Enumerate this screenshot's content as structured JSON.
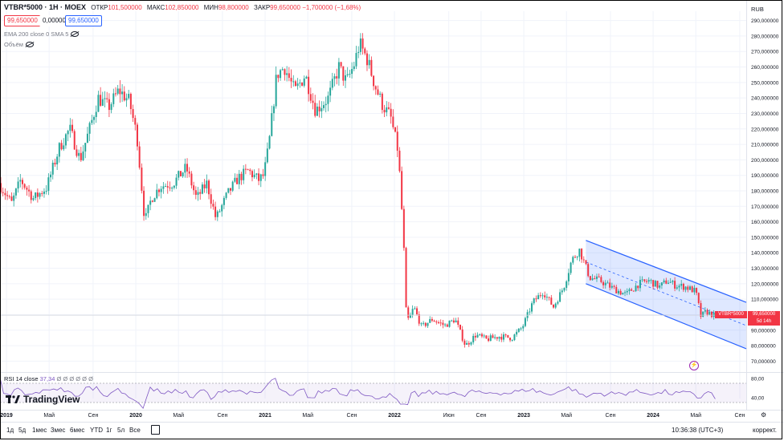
{
  "header": {
    "symbol": "VTBR*5000 · 1H · MOEX",
    "open_label": "ОТКР",
    "open": "101,500000",
    "high_label": "МАКС",
    "high": "102,850000",
    "low_label": "МИН",
    "low": "98,800000",
    "close_label": "ЗАКР",
    "close": "99,650000",
    "change": "−1,700000 (−1,68%)"
  },
  "pills": {
    "sell": "99,650000",
    "spread": "0,000000",
    "buy": "99,650000"
  },
  "indicators": {
    "ema": "EMA 200 close 0 SMA 5",
    "volume": "Объём"
  },
  "currency": "RUB",
  "price_tag": {
    "symbol": "VTBR*5000",
    "price": "99,650000",
    "countdown": "5d 14h"
  },
  "rsi": {
    "label": "RSI 14 close",
    "value": "37,34",
    "zeros": "Ø Ø Ø Ø Ø Ø"
  },
  "brand": "TradingView",
  "timeframes": [
    "1д",
    "5д",
    "1мес",
    "3мес",
    "6мес",
    "YTD",
    "1г",
    "5л",
    "Все"
  ],
  "clock": "10:36:38 (UTC+3)",
  "correction": "коррект.",
  "colors": {
    "up": "#26a69a",
    "down": "#f23645",
    "channel": "#2962ff",
    "rsi": "#7e57c2"
  },
  "chart_data": {
    "type": "candlestick",
    "ylim": [
      64,
      296
    ],
    "y_ticks": [
      290,
      280,
      270,
      260,
      250,
      240,
      230,
      220,
      210,
      200,
      190,
      180,
      170,
      160,
      150,
      140,
      130,
      120,
      110,
      100,
      90,
      80,
      70
    ],
    "y_tick_labels": [
      "290,000000",
      "280,000000",
      "270,000000",
      "260,000000",
      "250,000000",
      "240,000000",
      "230,000000",
      "220,000000",
      "210,000000",
      "200,000000",
      "190,000000",
      "180,000000",
      "170,000000",
      "160,000000",
      "150,000000",
      "140,000000",
      "130,000000",
      "120,000000",
      "110,000000",
      "100,000000",
      "90,000000",
      "80,000000",
      "70,000000"
    ],
    "x_ticks": [
      {
        "label": "2019",
        "t": 2019.0,
        "bold": true
      },
      {
        "label": "Май",
        "t": 2019.33
      },
      {
        "label": "Сен",
        "t": 2019.67
      },
      {
        "label": "2020",
        "t": 2020.0,
        "bold": true
      },
      {
        "label": "Май",
        "t": 2020.33
      },
      {
        "label": "Сен",
        "t": 2020.67
      },
      {
        "label": "2021",
        "t": 2021.0,
        "bold": true
      },
      {
        "label": "Май",
        "t": 2021.33
      },
      {
        "label": "Сен",
        "t": 2021.67
      },
      {
        "label": "2022",
        "t": 2022.0,
        "bold": true
      },
      {
        "label": "Июн",
        "t": 2022.42
      },
      {
        "label": "Сен",
        "t": 2022.67
      },
      {
        "label": "2023",
        "t": 2023.0,
        "bold": true
      },
      {
        "label": "Май",
        "t": 2023.33
      },
      {
        "label": "Сен",
        "t": 2023.67
      },
      {
        "label": "2024",
        "t": 2024.0,
        "bold": true
      },
      {
        "label": "Май",
        "t": 2024.33
      },
      {
        "label": "Сен",
        "t": 2024.67
      }
    ],
    "xlim": [
      2018.95,
      2024.72
    ],
    "last_price": 99.65,
    "anchors": [
      [
        2018.95,
        185
      ],
      [
        2019.05,
        172
      ],
      [
        2019.12,
        187
      ],
      [
        2019.22,
        175
      ],
      [
        2019.32,
        182
      ],
      [
        2019.42,
        208
      ],
      [
        2019.5,
        220
      ],
      [
        2019.58,
        200
      ],
      [
        2019.66,
        222
      ],
      [
        2019.72,
        240
      ],
      [
        2019.8,
        234
      ],
      [
        2019.88,
        245
      ],
      [
        2019.96,
        238
      ],
      [
        2020.02,
        215
      ],
      [
        2020.08,
        160
      ],
      [
        2020.13,
        175
      ],
      [
        2020.2,
        183
      ],
      [
        2020.3,
        185
      ],
      [
        2020.4,
        195
      ],
      [
        2020.48,
        175
      ],
      [
        2020.56,
        185
      ],
      [
        2020.63,
        162
      ],
      [
        2020.72,
        178
      ],
      [
        2020.8,
        188
      ],
      [
        2020.88,
        193
      ],
      [
        2020.96,
        187
      ],
      [
        2021.0,
        190
      ],
      [
        2021.04,
        210
      ],
      [
        2021.1,
        255
      ],
      [
        2021.16,
        260
      ],
      [
        2021.24,
        244
      ],
      [
        2021.32,
        255
      ],
      [
        2021.4,
        232
      ],
      [
        2021.5,
        240
      ],
      [
        2021.58,
        260
      ],
      [
        2021.64,
        250
      ],
      [
        2021.7,
        262
      ],
      [
        2021.74,
        275
      ],
      [
        2021.8,
        265
      ],
      [
        2021.86,
        248
      ],
      [
        2021.92,
        235
      ],
      [
        2021.98,
        228
      ],
      [
        2022.04,
        205
      ],
      [
        2022.08,
        150
      ],
      [
        2022.1,
        103
      ],
      [
        2022.12,
        96
      ],
      [
        2022.16,
        105
      ],
      [
        2022.22,
        92
      ],
      [
        2022.3,
        97
      ],
      [
        2022.4,
        93
      ],
      [
        2022.48,
        97
      ],
      [
        2022.56,
        80
      ],
      [
        2022.64,
        87
      ],
      [
        2022.72,
        84
      ],
      [
        2022.82,
        86
      ],
      [
        2022.92,
        85
      ],
      [
        2023.0,
        92
      ],
      [
        2023.08,
        108
      ],
      [
        2023.16,
        115
      ],
      [
        2023.24,
        105
      ],
      [
        2023.32,
        118
      ],
      [
        2023.38,
        135
      ],
      [
        2023.44,
        142
      ],
      [
        2023.52,
        124
      ],
      [
        2023.6,
        122
      ],
      [
        2023.7,
        117
      ],
      [
        2023.8,
        113
      ],
      [
        2023.9,
        120
      ],
      [
        2023.98,
        122
      ],
      [
        2024.06,
        118
      ],
      [
        2024.12,
        122
      ],
      [
        2024.18,
        119
      ],
      [
        2024.26,
        118
      ],
      [
        2024.34,
        115
      ],
      [
        2024.38,
        99
      ],
      [
        2024.42,
        102
      ],
      [
        2024.48,
        99.65
      ]
    ],
    "channel": {
      "t_start": 2023.48,
      "t_end": 2024.72,
      "upper": [
        148,
        108
      ],
      "lower": [
        120,
        78
      ],
      "mid": [
        134,
        93
      ]
    },
    "rsi": {
      "ylim": [
        20,
        90
      ],
      "ticks": [
        80,
        40
      ],
      "tick_labels": [
        "80,00",
        "40,00"
      ],
      "band": [
        30,
        70
      ],
      "last": 37.34
    }
  }
}
